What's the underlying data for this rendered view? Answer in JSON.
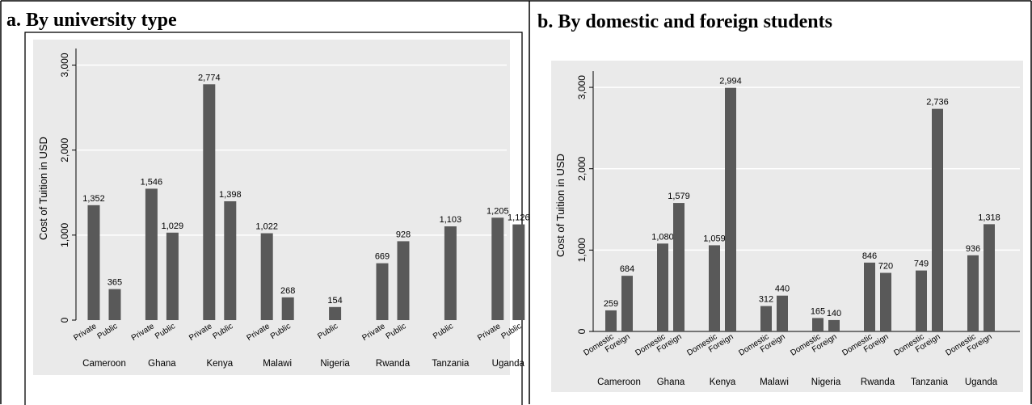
{
  "panels": {
    "a_title": "a. By university type",
    "b_title": "b. By domestic and foreign students"
  },
  "colors": {
    "bar": "#595959",
    "plot_bg": "#eaeaea",
    "grid": "#ffffff",
    "text": "#000000"
  },
  "chart_data": [
    {
      "type": "bar",
      "title": "a. By university type",
      "ylabel": "Cost of Tuition in USD",
      "ylim": [
        0,
        3100
      ],
      "yticks": [
        0,
        1000,
        2000,
        3000
      ],
      "ytick_labels": [
        "0",
        "1,000",
        "2,000",
        "3,000"
      ],
      "grid": true,
      "groups": [
        {
          "name": "Cameroon",
          "bars": [
            {
              "label": "Private",
              "value": 1352,
              "text": "1,352"
            },
            {
              "label": "Public",
              "value": 365,
              "text": "365"
            }
          ]
        },
        {
          "name": "Ghana",
          "bars": [
            {
              "label": "Private",
              "value": 1546,
              "text": "1,546"
            },
            {
              "label": "Public",
              "value": 1029,
              "text": "1,029"
            }
          ]
        },
        {
          "name": "Kenya",
          "bars": [
            {
              "label": "Private",
              "value": 2774,
              "text": "2,774"
            },
            {
              "label": "Public",
              "value": 1398,
              "text": "1,398"
            }
          ]
        },
        {
          "name": "Malawi",
          "bars": [
            {
              "label": "Private",
              "value": 1022,
              "text": "1,022"
            },
            {
              "label": "Public",
              "value": 268,
              "text": "268"
            }
          ]
        },
        {
          "name": "Nigeria",
          "bars": [
            {
              "label": "Public",
              "value": 154,
              "text": "154"
            }
          ]
        },
        {
          "name": "Rwanda",
          "bars": [
            {
              "label": "Private",
              "value": 669,
              "text": "669"
            },
            {
              "label": "Public",
              "value": 928,
              "text": "928"
            }
          ]
        },
        {
          "name": "Tanzania",
          "bars": [
            {
              "label": "Public",
              "value": 1103,
              "text": "1,103"
            }
          ]
        },
        {
          "name": "Uganda",
          "bars": [
            {
              "label": "Private",
              "value": 1205,
              "text": "1,205"
            },
            {
              "label": "Public",
              "value": 1126,
              "text": "1,126"
            }
          ]
        }
      ]
    },
    {
      "type": "bar",
      "title": "b. By domestic and foreign students",
      "ylabel": "Cost of Tuition in USD",
      "ylim": [
        0,
        3100
      ],
      "yticks": [
        0,
        1000,
        2000,
        3000
      ],
      "ytick_labels": [
        "0",
        "1,000",
        "2,000",
        "3,000"
      ],
      "grid": true,
      "groups": [
        {
          "name": "Cameroon",
          "bars": [
            {
              "label": "Domestic",
              "value": 259,
              "text": "259"
            },
            {
              "label": "Foreign",
              "value": 684,
              "text": "684"
            }
          ]
        },
        {
          "name": "Ghana",
          "bars": [
            {
              "label": "Domestic",
              "value": 1080,
              "text": "1,080"
            },
            {
              "label": "Foreign",
              "value": 1579,
              "text": "1,579"
            }
          ]
        },
        {
          "name": "Kenya",
          "bars": [
            {
              "label": "Domestic",
              "value": 1059,
              "text": "1,059"
            },
            {
              "label": "Foreign",
              "value": 2994,
              "text": "2,994"
            }
          ]
        },
        {
          "name": "Malawi",
          "bars": [
            {
              "label": "Domestic",
              "value": 312,
              "text": "312"
            },
            {
              "label": "Foreign",
              "value": 440,
              "text": "440"
            }
          ]
        },
        {
          "name": "Nigeria",
          "bars": [
            {
              "label": "Domestic",
              "value": 165,
              "text": "165"
            },
            {
              "label": "Foreign",
              "value": 140,
              "text": "140"
            }
          ]
        },
        {
          "name": "Rwanda",
          "bars": [
            {
              "label": "Domestic",
              "value": 846,
              "text": "846"
            },
            {
              "label": "Foreign",
              "value": 720,
              "text": "720"
            }
          ]
        },
        {
          "name": "Tanzania",
          "bars": [
            {
              "label": "Domestic",
              "value": 749,
              "text": "749"
            },
            {
              "label": "Foreign",
              "value": 2736,
              "text": "2,736"
            }
          ]
        },
        {
          "name": "Uganda",
          "bars": [
            {
              "label": "Domestic",
              "value": 936,
              "text": "936"
            },
            {
              "label": "Foreign",
              "value": 1318,
              "text": "1,318"
            }
          ]
        }
      ]
    }
  ]
}
